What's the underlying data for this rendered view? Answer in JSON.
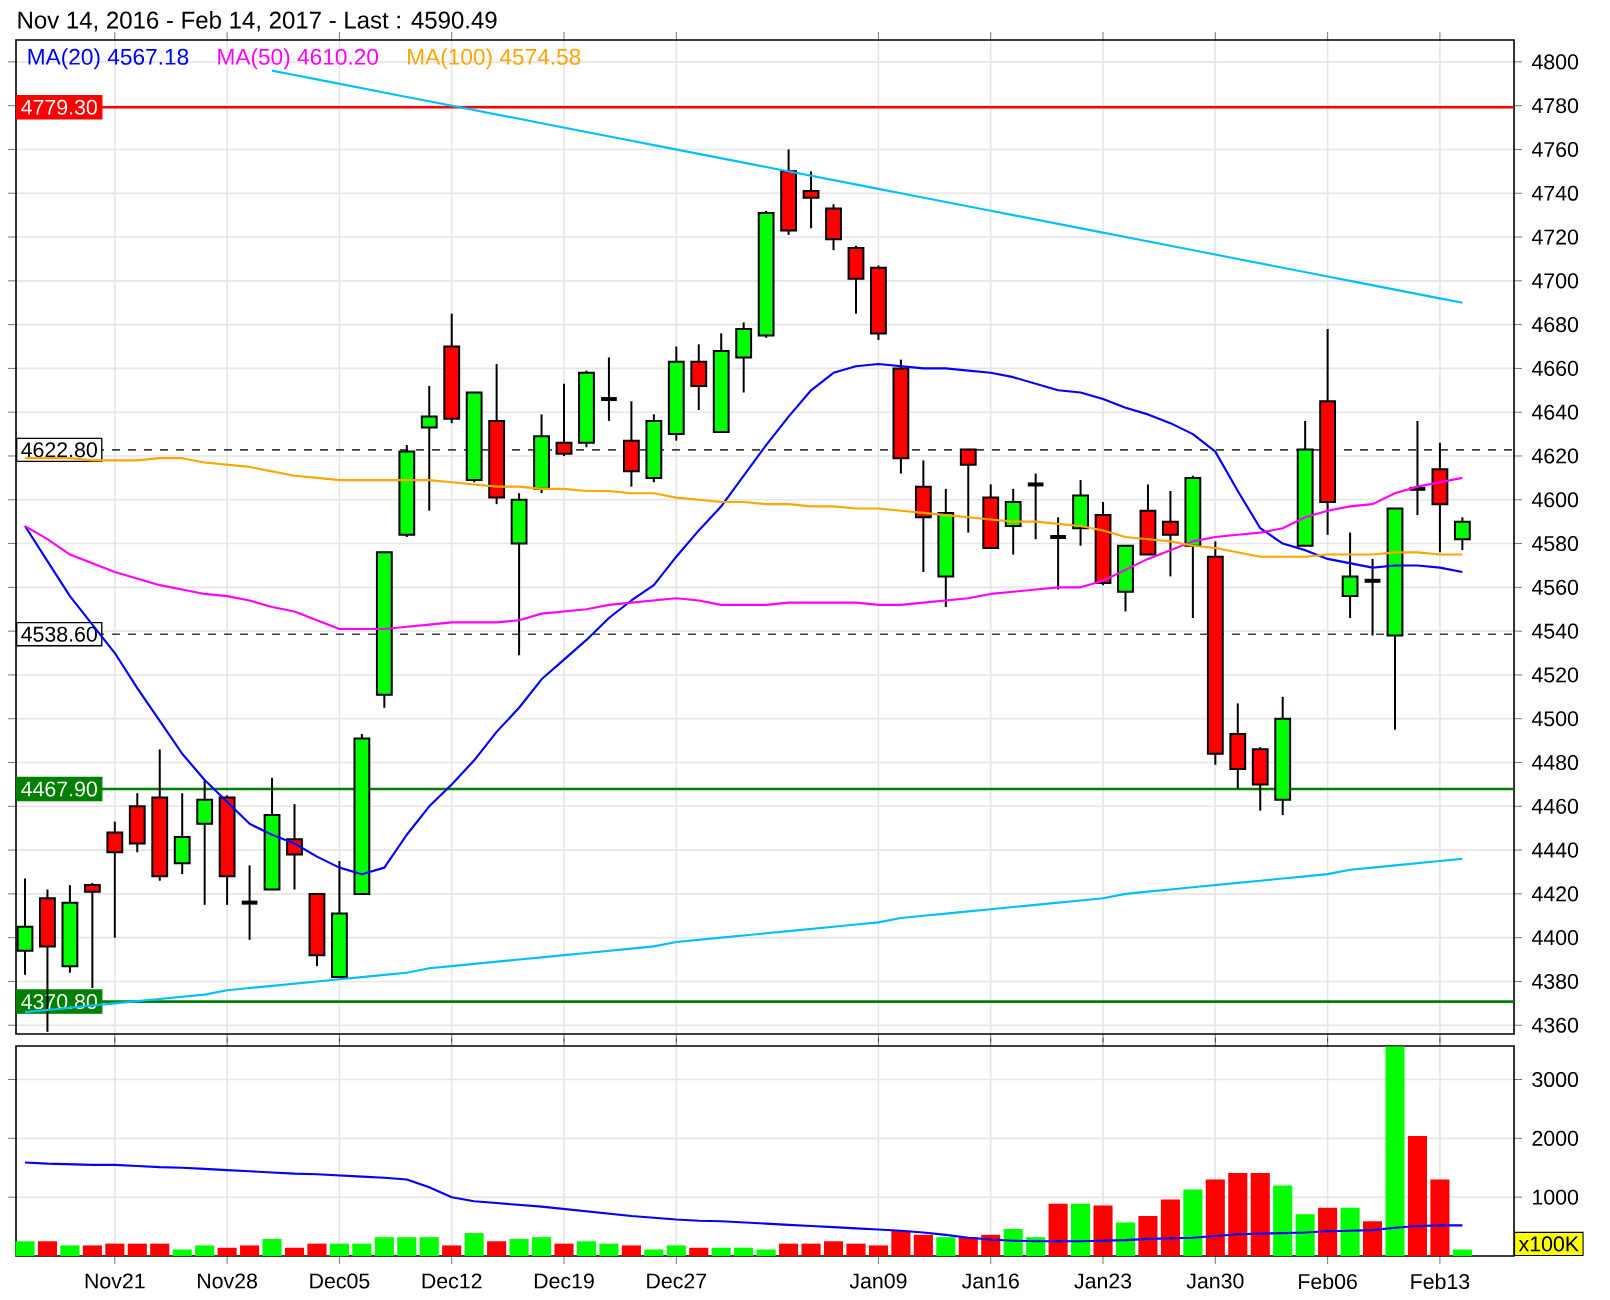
{
  "chart_data": [
    {
      "type": "candlestick",
      "title": "Nov 14, 2016 - Feb 14, 2017 - Last : 4590.49",
      "categories": [
        null,
        null,
        null,
        null,
        null,
        null,
        null,
        null,
        null,
        null,
        null,
        null,
        null,
        null,
        null,
        null,
        null,
        null,
        null,
        null,
        null,
        null,
        null,
        null,
        null,
        null,
        null,
        null,
        null,
        null,
        null,
        null,
        null,
        null,
        null,
        null,
        null,
        null,
        null,
        null,
        null,
        null,
        null,
        null,
        null,
        null,
        null,
        null,
        null,
        null,
        null,
        null,
        null,
        null,
        null,
        null,
        null,
        null,
        null,
        null,
        null,
        null,
        null,
        null,
        null
      ],
      "ohlc": [
        [
          4394,
          4427,
          4383,
          4405
        ],
        [
          4418,
          4422,
          4357,
          4396
        ],
        [
          4387,
          4424,
          4384,
          4416
        ],
        [
          4424,
          4425,
          4377,
          4421
        ],
        [
          4448,
          4453,
          4400,
          4439
        ],
        [
          4460,
          4466,
          4439,
          4443
        ],
        [
          4464,
          4486,
          4426,
          4428
        ],
        [
          4434,
          4466,
          4429,
          4446
        ],
        [
          4452,
          4472,
          4415,
          4463
        ],
        [
          4464,
          4465,
          4415,
          4428
        ],
        [
          4416,
          4433,
          4399,
          4416
        ],
        [
          4422,
          4473,
          4422,
          4456
        ],
        [
          4445,
          4461,
          4422,
          4438
        ],
        [
          4420,
          4420,
          4387,
          4392
        ],
        [
          4382,
          4435,
          4382,
          4411
        ],
        [
          4420,
          4493,
          4420,
          4491
        ],
        [
          4511,
          4576,
          4505,
          4576
        ],
        [
          4584,
          4625,
          4583,
          4622
        ],
        [
          4633,
          4652,
          4595,
          4638
        ],
        [
          4670,
          4685,
          4635,
          4637
        ],
        [
          4609,
          4649,
          4608,
          4649
        ],
        [
          4636,
          4662,
          4598,
          4601
        ],
        [
          4580,
          4603,
          4529,
          4600
        ],
        [
          4605,
          4639,
          4603,
          4629
        ],
        [
          4626,
          4653,
          4620,
          4621
        ],
        [
          4626,
          4659,
          4624,
          4658
        ],
        [
          4646,
          4665,
          4636,
          4646
        ],
        [
          4627,
          4645,
          4606,
          4613
        ],
        [
          4610,
          4639,
          4608,
          4636
        ],
        [
          4630,
          4670,
          4627,
          4663
        ],
        [
          4663,
          4671,
          4641,
          4652
        ],
        [
          4631,
          4676,
          4631,
          4668
        ],
        [
          4665,
          4681,
          4649,
          4678
        ],
        [
          4675,
          4732,
          4674,
          4731
        ],
        [
          4750,
          4760,
          4721,
          4723
        ],
        [
          4741,
          4750,
          4724,
          4738
        ],
        [
          4733,
          4735,
          4714,
          4719
        ],
        [
          4715,
          4716,
          4685,
          4701
        ],
        [
          4706,
          4707,
          4673,
          4676
        ],
        [
          4660,
          4664,
          4612,
          4619
        ],
        [
          4606,
          4618,
          4567,
          4592
        ],
        [
          4565,
          4605,
          4551,
          4594
        ],
        [
          4623,
          4623,
          4585,
          4616
        ],
        [
          4601,
          4607,
          4578,
          4578
        ],
        [
          4588,
          4605,
          4575,
          4599
        ],
        [
          4607,
          4612,
          4582,
          4607
        ],
        [
          4583,
          4592,
          4559,
          4583
        ],
        [
          4587,
          4609,
          4579,
          4602
        ],
        [
          4593,
          4599,
          4561,
          4562
        ],
        [
          4558,
          4579,
          4549,
          4579
        ],
        [
          4595,
          4607,
          4575,
          4575
        ],
        [
          4590,
          4604,
          4565,
          4584
        ],
        [
          4579,
          4611,
          4546,
          4610
        ],
        [
          4574,
          4581,
          4479,
          4484
        ],
        [
          4493,
          4507,
          4468,
          4477
        ],
        [
          4486,
          4487,
          4458,
          4470
        ],
        [
          4463,
          4510,
          4456,
          4500
        ],
        [
          4579,
          4636,
          4579,
          4623
        ],
        [
          4645,
          4678,
          4584,
          4599
        ],
        [
          4556,
          4585,
          4546,
          4565
        ],
        [
          4563,
          4573,
          4538,
          4563
        ],
        [
          4538,
          4596,
          4495,
          4596
        ],
        [
          4605,
          4636,
          4593,
          4605
        ],
        [
          4614,
          4626,
          4576,
          4598
        ],
        [
          4582,
          4592,
          4577,
          4590
        ]
      ],
      "colors": [
        "#00ff00",
        "#ff0000",
        "#00ff00",
        "#ff0000",
        "#ff0000",
        "#ff0000",
        "#ff0000",
        "#00ff00",
        "#00ff00",
        "#ff0000",
        "#000000",
        "#00ff00",
        "#ff0000",
        "#ff0000",
        "#00ff00",
        "#00ff00",
        "#00ff00",
        "#00ff00",
        "#00ff00",
        "#ff0000",
        "#00ff00",
        "#ff0000",
        "#00ff00",
        "#00ff00",
        "#ff0000",
        "#00ff00",
        "#000000",
        "#ff0000",
        "#00ff00",
        "#00ff00",
        "#ff0000",
        "#00ff00",
        "#00ff00",
        "#00ff00",
        "#ff0000",
        "#ff0000",
        "#ff0000",
        "#ff0000",
        "#ff0000",
        "#ff0000",
        "#ff0000",
        "#00ff00",
        "#ff0000",
        "#ff0000",
        "#00ff00",
        "#000000",
        "#000000",
        "#00ff00",
        "#ff0000",
        "#00ff00",
        "#ff0000",
        "#ff0000",
        "#00ff00",
        "#ff0000",
        "#ff0000",
        "#ff0000",
        "#00ff00",
        "#00ff00",
        "#ff0000",
        "#00ff00",
        "#000000",
        "#00ff00",
        "#000000",
        "#ff0000",
        "#00ff00"
      ],
      "series": [
        {
          "type": "line",
          "name": "MA(20) 4567.18",
          "color": "#0000ff",
          "values": [
            4588,
            4572,
            4556,
            4543,
            4530,
            4514,
            4499,
            4484,
            4472,
            4462,
            4452,
            4447,
            4443,
            4437,
            4432,
            4429,
            4432,
            4447,
            4460,
            4470,
            4481,
            4494,
            4505,
            4518,
            4527,
            4536,
            4546,
            4554,
            4561,
            4574,
            4586,
            4597,
            4611,
            4625,
            4638,
            4650,
            4658,
            4661,
            4662,
            4661,
            4660,
            4660,
            4659,
            4658,
            4656,
            4653,
            4650,
            4649,
            4646,
            4642,
            4639,
            4635,
            4630,
            4622,
            4604,
            4587,
            4580,
            4577,
            4573,
            4571,
            4569,
            4570,
            4570,
            4569,
            4567
          ]
        },
        {
          "type": "line",
          "name": "MA(50) 4610.20",
          "color": "#ff00ff",
          "values": [
            4588,
            4582,
            4575,
            4571,
            4567,
            4564,
            4561,
            4559,
            4557,
            4556,
            4554,
            4551,
            4549,
            4545,
            4541,
            4541,
            4541,
            4542,
            4543,
            4544,
            4544,
            4544,
            4545,
            4548,
            4549,
            4550,
            4552,
            4553,
            4554,
            4555,
            4554,
            4552,
            4552,
            4552,
            4553,
            4553,
            4553,
            4553,
            4552,
            4552,
            4553,
            4554,
            4555,
            4557,
            4558,
            4559,
            4560,
            4560,
            4563,
            4568,
            4573,
            4577,
            4581,
            4583,
            4584,
            4585,
            4587,
            4592,
            4595,
            4597,
            4598,
            4603,
            4606,
            4608,
            4610
          ]
        },
        {
          "type": "line",
          "name": "MA(100) 4574.58",
          "color": "#ffa500",
          "values": [
            4619,
            4619,
            4619,
            4618,
            4618,
            4618,
            4619,
            4619,
            4617,
            4616,
            4615,
            4613,
            4611,
            4610,
            4609,
            4609,
            4609,
            4609,
            4609,
            4608,
            4607,
            4606,
            4606,
            4605,
            4605,
            4604,
            4604,
            4603,
            4603,
            4601,
            4600,
            4599,
            4599,
            4598,
            4598,
            4597,
            4597,
            4596,
            4596,
            4595,
            4594,
            4593,
            4592,
            4591,
            4590,
            4590,
            4589,
            4588,
            4586,
            4583,
            4582,
            4581,
            4579,
            4578,
            4576,
            4574,
            4574,
            4574,
            4575,
            4575,
            4575,
            4576,
            4576,
            4575,
            4575
          ]
        },
        {
          "type": "line",
          "color": "#00bfff",
          "values": [
            null,
            null,
            null,
            null,
            null,
            null,
            null,
            null,
            null,
            null,
            null,
            4796,
            4794,
            4792,
            4790,
            4788,
            4786,
            4784,
            4782,
            4780,
            4778,
            4776,
            4774,
            4772,
            4770,
            4768,
            4766,
            4764,
            4762,
            4760,
            4758,
            4756,
            4754,
            4752,
            4750,
            4748,
            4746,
            4744,
            4742,
            4740,
            4738,
            4736,
            4734,
            4732,
            4730,
            4728,
            4726,
            4724,
            4722,
            4720,
            4718,
            4716,
            4714,
            4712,
            4710,
            4708,
            4706,
            4704,
            4702,
            4700,
            4698,
            4696,
            4694,
            4692,
            4690
          ]
        },
        {
          "type": "line",
          "color": "#00bfff",
          "values": [
            4366,
            4367,
            4368,
            4369,
            4370,
            4371,
            4372,
            4373,
            4374,
            4376,
            4377,
            4378,
            4379,
            4380,
            4381,
            4382,
            4383,
            4384,
            4386,
            4387,
            4388,
            4389,
            4390,
            4391,
            4392,
            4393,
            4394,
            4395,
            4396,
            4398,
            4399,
            4400,
            4401,
            4402,
            4403,
            4404,
            4405,
            4406,
            4407,
            4409,
            4410,
            4411,
            4412,
            4413,
            4414,
            4415,
            4416,
            4417,
            4418,
            4420,
            4421,
            4422,
            4423,
            4424,
            4425,
            4426,
            4427,
            4428,
            4429,
            4431,
            4432,
            4433,
            4434,
            4435,
            4436
          ]
        }
      ],
      "ref_lines": [
        {
          "axis": "y",
          "value": 4779.3,
          "label": "4779.30",
          "color": "#ff0000",
          "line_style": "solid"
        },
        {
          "axis": "y",
          "value": 4622.8,
          "label": "4622.80",
          "color": "#404040",
          "line_style": "dashed"
        },
        {
          "axis": "y",
          "value": 4538.6,
          "label": "4538.60",
          "color": "#404040",
          "line_style": "dashed"
        },
        {
          "axis": "y",
          "value": 4467.9,
          "label": "4467.90",
          "color": "#008000",
          "line_style": "solid"
        },
        {
          "axis": "y",
          "value": 4370.8,
          "label": "4370.80",
          "color": "#008000",
          "line_style": "solid"
        }
      ],
      "ylim": [
        4356,
        4810
      ],
      "yticks": [
        4360,
        4380,
        4400,
        4420,
        4440,
        4460,
        4480,
        4500,
        4520,
        4540,
        4560,
        4580,
        4600,
        4620,
        4640,
        4660,
        4680,
        4700,
        4720,
        4740,
        4760,
        4780,
        4800
      ],
      "grid": true,
      "legend": "top left",
      "tick_labels": "y"
    },
    {
      "type": "bar",
      "ylabel": "x100K",
      "categories": [
        null,
        null,
        null,
        null,
        "Nov21",
        null,
        null,
        null,
        null,
        "Nov28",
        null,
        null,
        null,
        null,
        "Dec05",
        null,
        null,
        null,
        null,
        "Dec12",
        null,
        null,
        null,
        null,
        "Dec19",
        null,
        null,
        null,
        null,
        "Dec27",
        null,
        null,
        null,
        null,
        null,
        null,
        null,
        null,
        "Jan09",
        null,
        null,
        null,
        null,
        "Jan16",
        null,
        null,
        null,
        null,
        "Jan23",
        null,
        null,
        null,
        null,
        "Jan30",
        null,
        null,
        null,
        null,
        "Feb06",
        null,
        null,
        null,
        null,
        "Feb13",
        null
      ],
      "series": [
        {
          "type": "bar",
          "values": [
            250,
            250,
            180,
            180,
            210,
            210,
            210,
            110,
            180,
            140,
            180,
            290,
            140,
            210,
            210,
            210,
            320,
            320,
            320,
            180,
            390,
            250,
            290,
            320,
            210,
            250,
            210,
            180,
            110,
            180,
            140,
            140,
            140,
            110,
            210,
            210,
            250,
            210,
            180,
            430,
            360,
            320,
            320,
            360,
            460,
            320,
            890,
            890,
            860,
            570,
            680,
            960,
            1130,
            1300,
            1410,
            1410,
            1200,
            710,
            820,
            820,
            590,
            3560,
            2040,
            1300,
            110
          ],
          "colors": [
            "#00ff00",
            "#ff0000",
            "#00ff00",
            "#ff0000",
            "#ff0000",
            "#ff0000",
            "#ff0000",
            "#00ff00",
            "#00ff00",
            "#ff0000",
            "#ff0000",
            "#00ff00",
            "#ff0000",
            "#ff0000",
            "#00ff00",
            "#00ff00",
            "#00ff00",
            "#00ff00",
            "#00ff00",
            "#ff0000",
            "#00ff00",
            "#ff0000",
            "#00ff00",
            "#00ff00",
            "#ff0000",
            "#00ff00",
            "#00ff00",
            "#ff0000",
            "#00ff00",
            "#00ff00",
            "#ff0000",
            "#00ff00",
            "#00ff00",
            "#00ff00",
            "#ff0000",
            "#ff0000",
            "#ff0000",
            "#ff0000",
            "#ff0000",
            "#ff0000",
            "#ff0000",
            "#00ff00",
            "#ff0000",
            "#ff0000",
            "#00ff00",
            "#00ff00",
            "#ff0000",
            "#00ff00",
            "#ff0000",
            "#00ff00",
            "#ff0000",
            "#ff0000",
            "#00ff00",
            "#ff0000",
            "#ff0000",
            "#ff0000",
            "#00ff00",
            "#00ff00",
            "#ff0000",
            "#00ff00",
            "#ff0000",
            "#00ff00",
            "#ff0000",
            "#ff0000",
            "#00ff00"
          ]
        },
        {
          "type": "line",
          "color": "#0000ff",
          "values": [
            1590,
            1570,
            1560,
            1550,
            1550,
            1530,
            1510,
            1500,
            1480,
            1460,
            1440,
            1420,
            1400,
            1390,
            1370,
            1350,
            1330,
            1300,
            1170,
            1000,
            930,
            900,
            870,
            840,
            800,
            760,
            720,
            680,
            650,
            620,
            600,
            590,
            570,
            550,
            530,
            510,
            490,
            470,
            450,
            430,
            400,
            360,
            310,
            280,
            260,
            250,
            250,
            250,
            260,
            270,
            290,
            300,
            310,
            340,
            370,
            380,
            390,
            400,
            420,
            430,
            440,
            480,
            510,
            520,
            520
          ]
        }
      ],
      "ylim": [
        0,
        3570
      ],
      "yticks": [
        1000,
        2000,
        3000
      ],
      "grid": true
    }
  ]
}
